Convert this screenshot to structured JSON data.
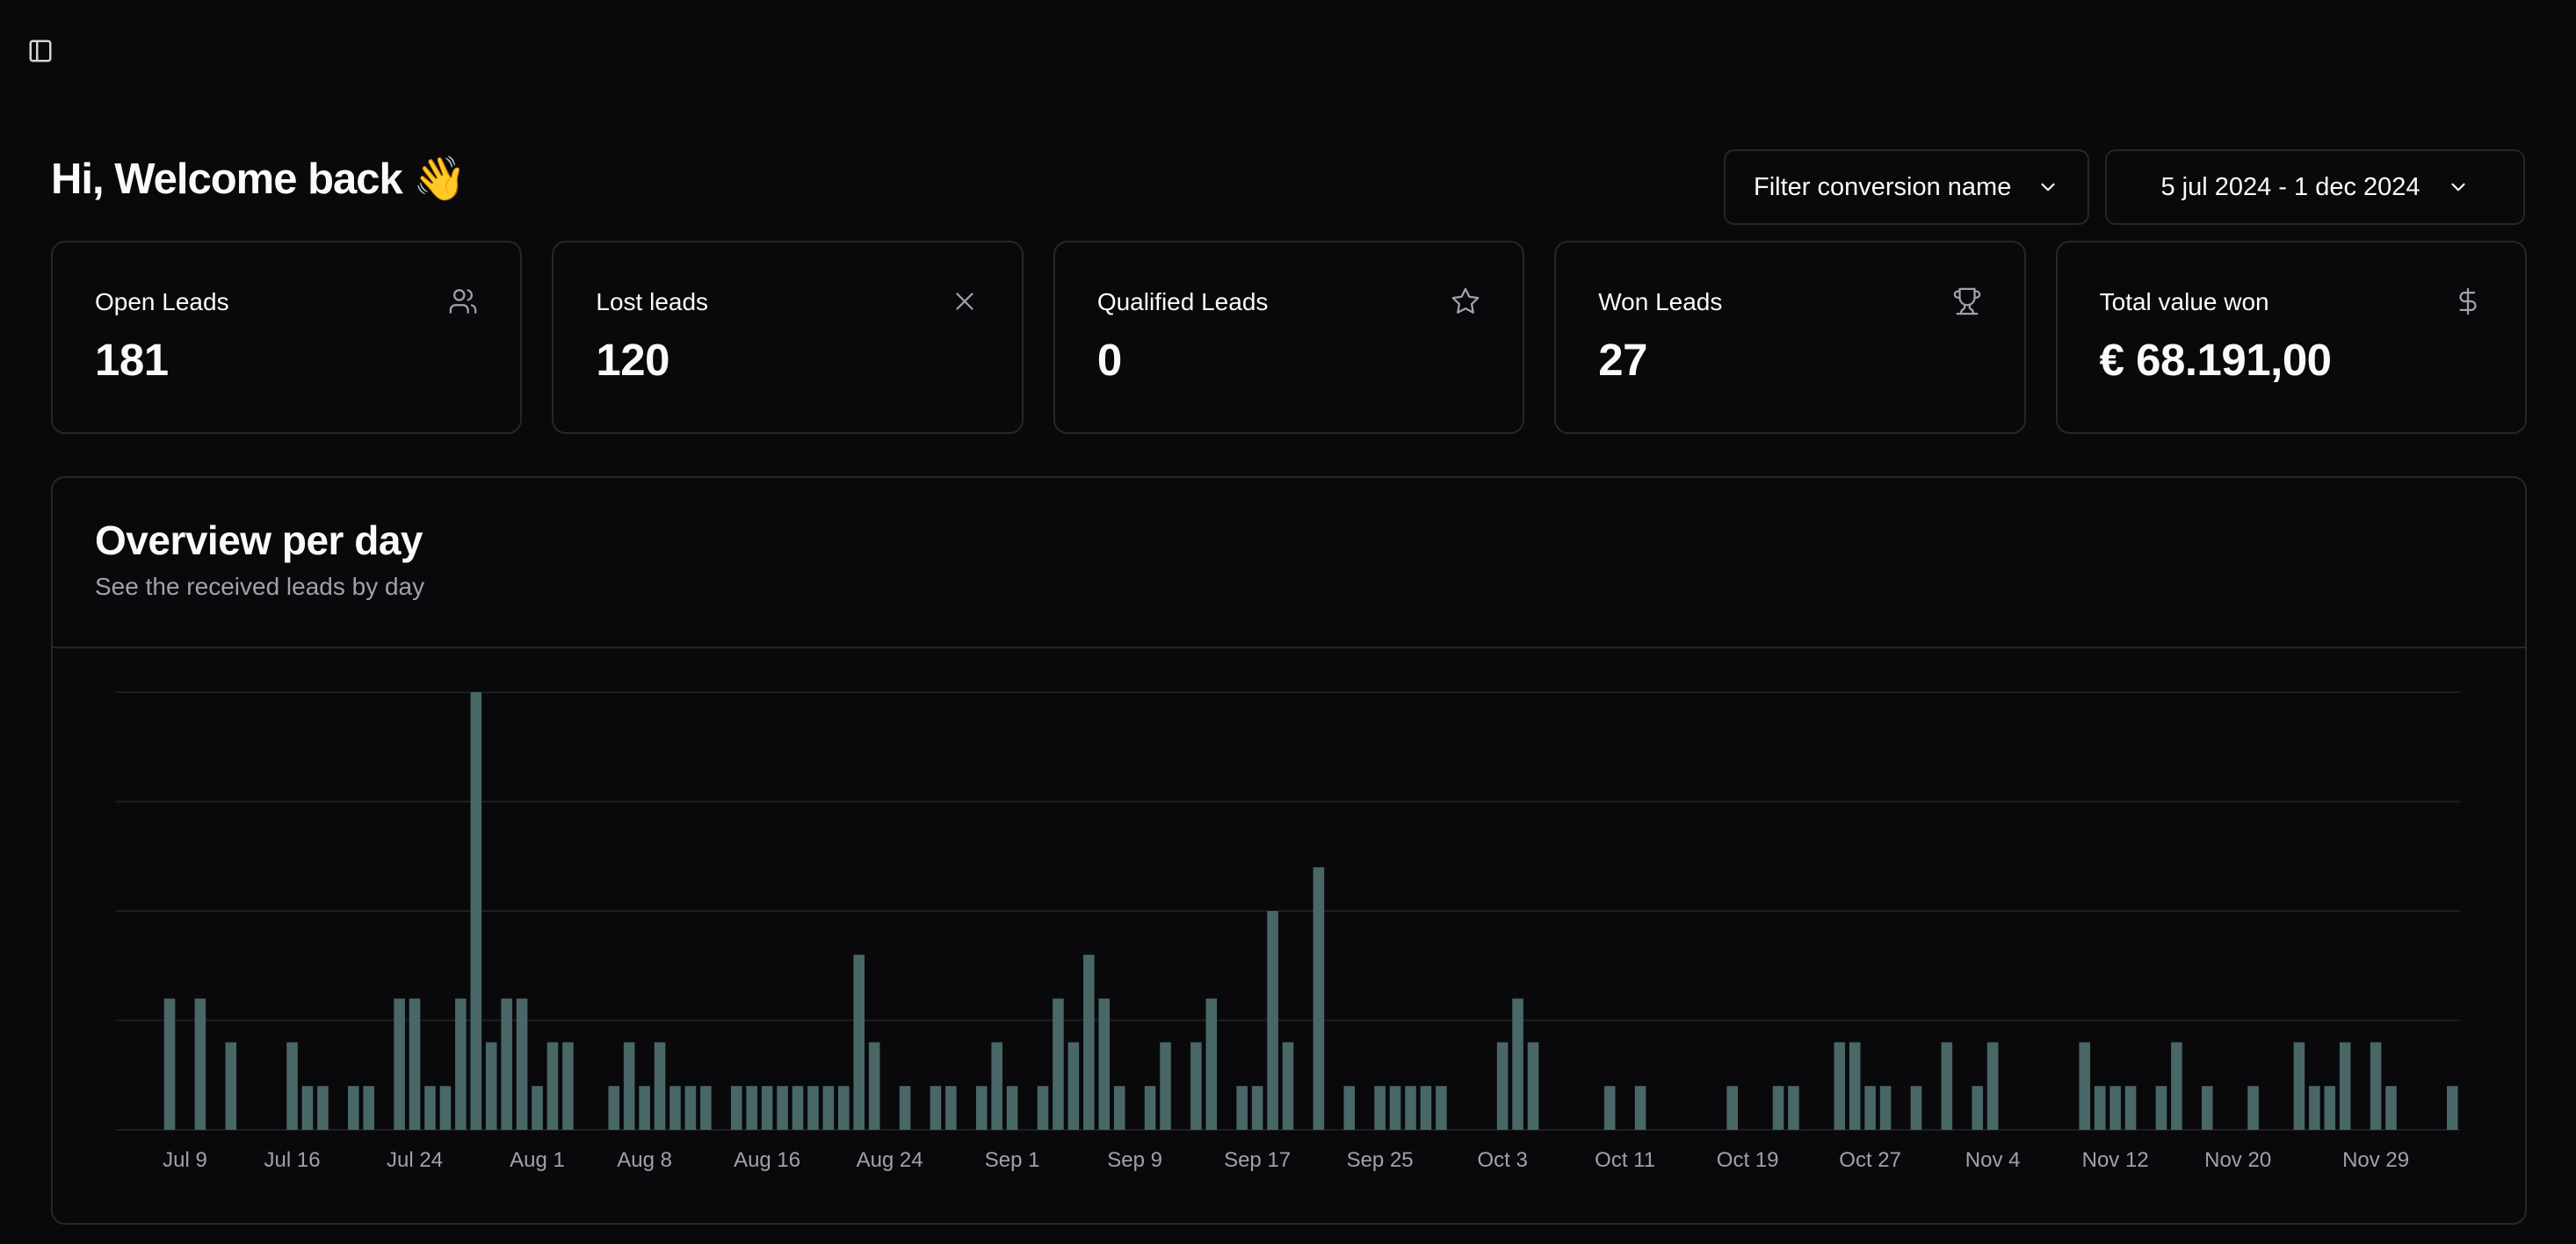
{
  "header": {
    "greeting": "Hi, Welcome back 👋",
    "filter_label": "Filter conversion name",
    "date_range": "5 jul 2024 - 1 dec 2024"
  },
  "stats": [
    {
      "label": "Open Leads",
      "value": "181",
      "icon": "users-icon"
    },
    {
      "label": "Lost leads",
      "value": "120",
      "icon": "close-icon"
    },
    {
      "label": "Qualified Leads",
      "value": "0",
      "icon": "star-icon"
    },
    {
      "label": "Won Leads",
      "value": "27",
      "icon": "trophy-icon"
    },
    {
      "label": "Total value won",
      "value": "€ 68.191,00",
      "icon": "dollar-icon"
    }
  ],
  "overview": {
    "title": "Overview per day",
    "subtitle": "See the received leads by day"
  },
  "colors": {
    "background": "#09090b",
    "border": "#27272a",
    "bar": "#4a6767",
    "muted_text": "#a1a1aa"
  },
  "chart_data": {
    "type": "bar",
    "x_start": "2024-07-05",
    "x_tick_labels": [
      "Jul 9",
      "Jul 16",
      "Jul 24",
      "Aug 1",
      "Aug 8",
      "Aug 16",
      "Aug 24",
      "Sep 1",
      "Sep 9",
      "Sep 17",
      "Sep 25",
      "Oct 3",
      "Oct 11",
      "Oct 19",
      "Oct 27",
      "Nov 4",
      "Nov 12",
      "Nov 20",
      "Nov 29"
    ],
    "y_gridlines": [
      0,
      2.5,
      5,
      7.5,
      10
    ],
    "ylim": [
      0,
      10
    ],
    "grid": true,
    "values": [
      0,
      0,
      0,
      3,
      0,
      3,
      0,
      2,
      0,
      0,
      0,
      2,
      1,
      1,
      0,
      1,
      1,
      0,
      3,
      3,
      1,
      1,
      3,
      10,
      2,
      3,
      3,
      1,
      2,
      2,
      0,
      0,
      1,
      2,
      1,
      2,
      1,
      1,
      1,
      0,
      1,
      1,
      1,
      1,
      1,
      1,
      1,
      1,
      4,
      2,
      0,
      1,
      0,
      1,
      1,
      0,
      1,
      2,
      1,
      0,
      1,
      3,
      2,
      4,
      3,
      1,
      0,
      1,
      2,
      0,
      2,
      3,
      0,
      1,
      1,
      5,
      2,
      0,
      6,
      0,
      1,
      0,
      1,
      1,
      1,
      1,
      1,
      0,
      0,
      0,
      2,
      3,
      2,
      0,
      0,
      0,
      0,
      1,
      0,
      1,
      0,
      0,
      0,
      0,
      0,
      1,
      0,
      0,
      1,
      1,
      0,
      0,
      2,
      2,
      1,
      1,
      0,
      1,
      0,
      2,
      0,
      1,
      2,
      0,
      0,
      0,
      0,
      0,
      2,
      1,
      1,
      1,
      0,
      1,
      2,
      0,
      1,
      0,
      0,
      1,
      0,
      0,
      2,
      1,
      1,
      2,
      0,
      2,
      1,
      0,
      0,
      0,
      1
    ]
  }
}
